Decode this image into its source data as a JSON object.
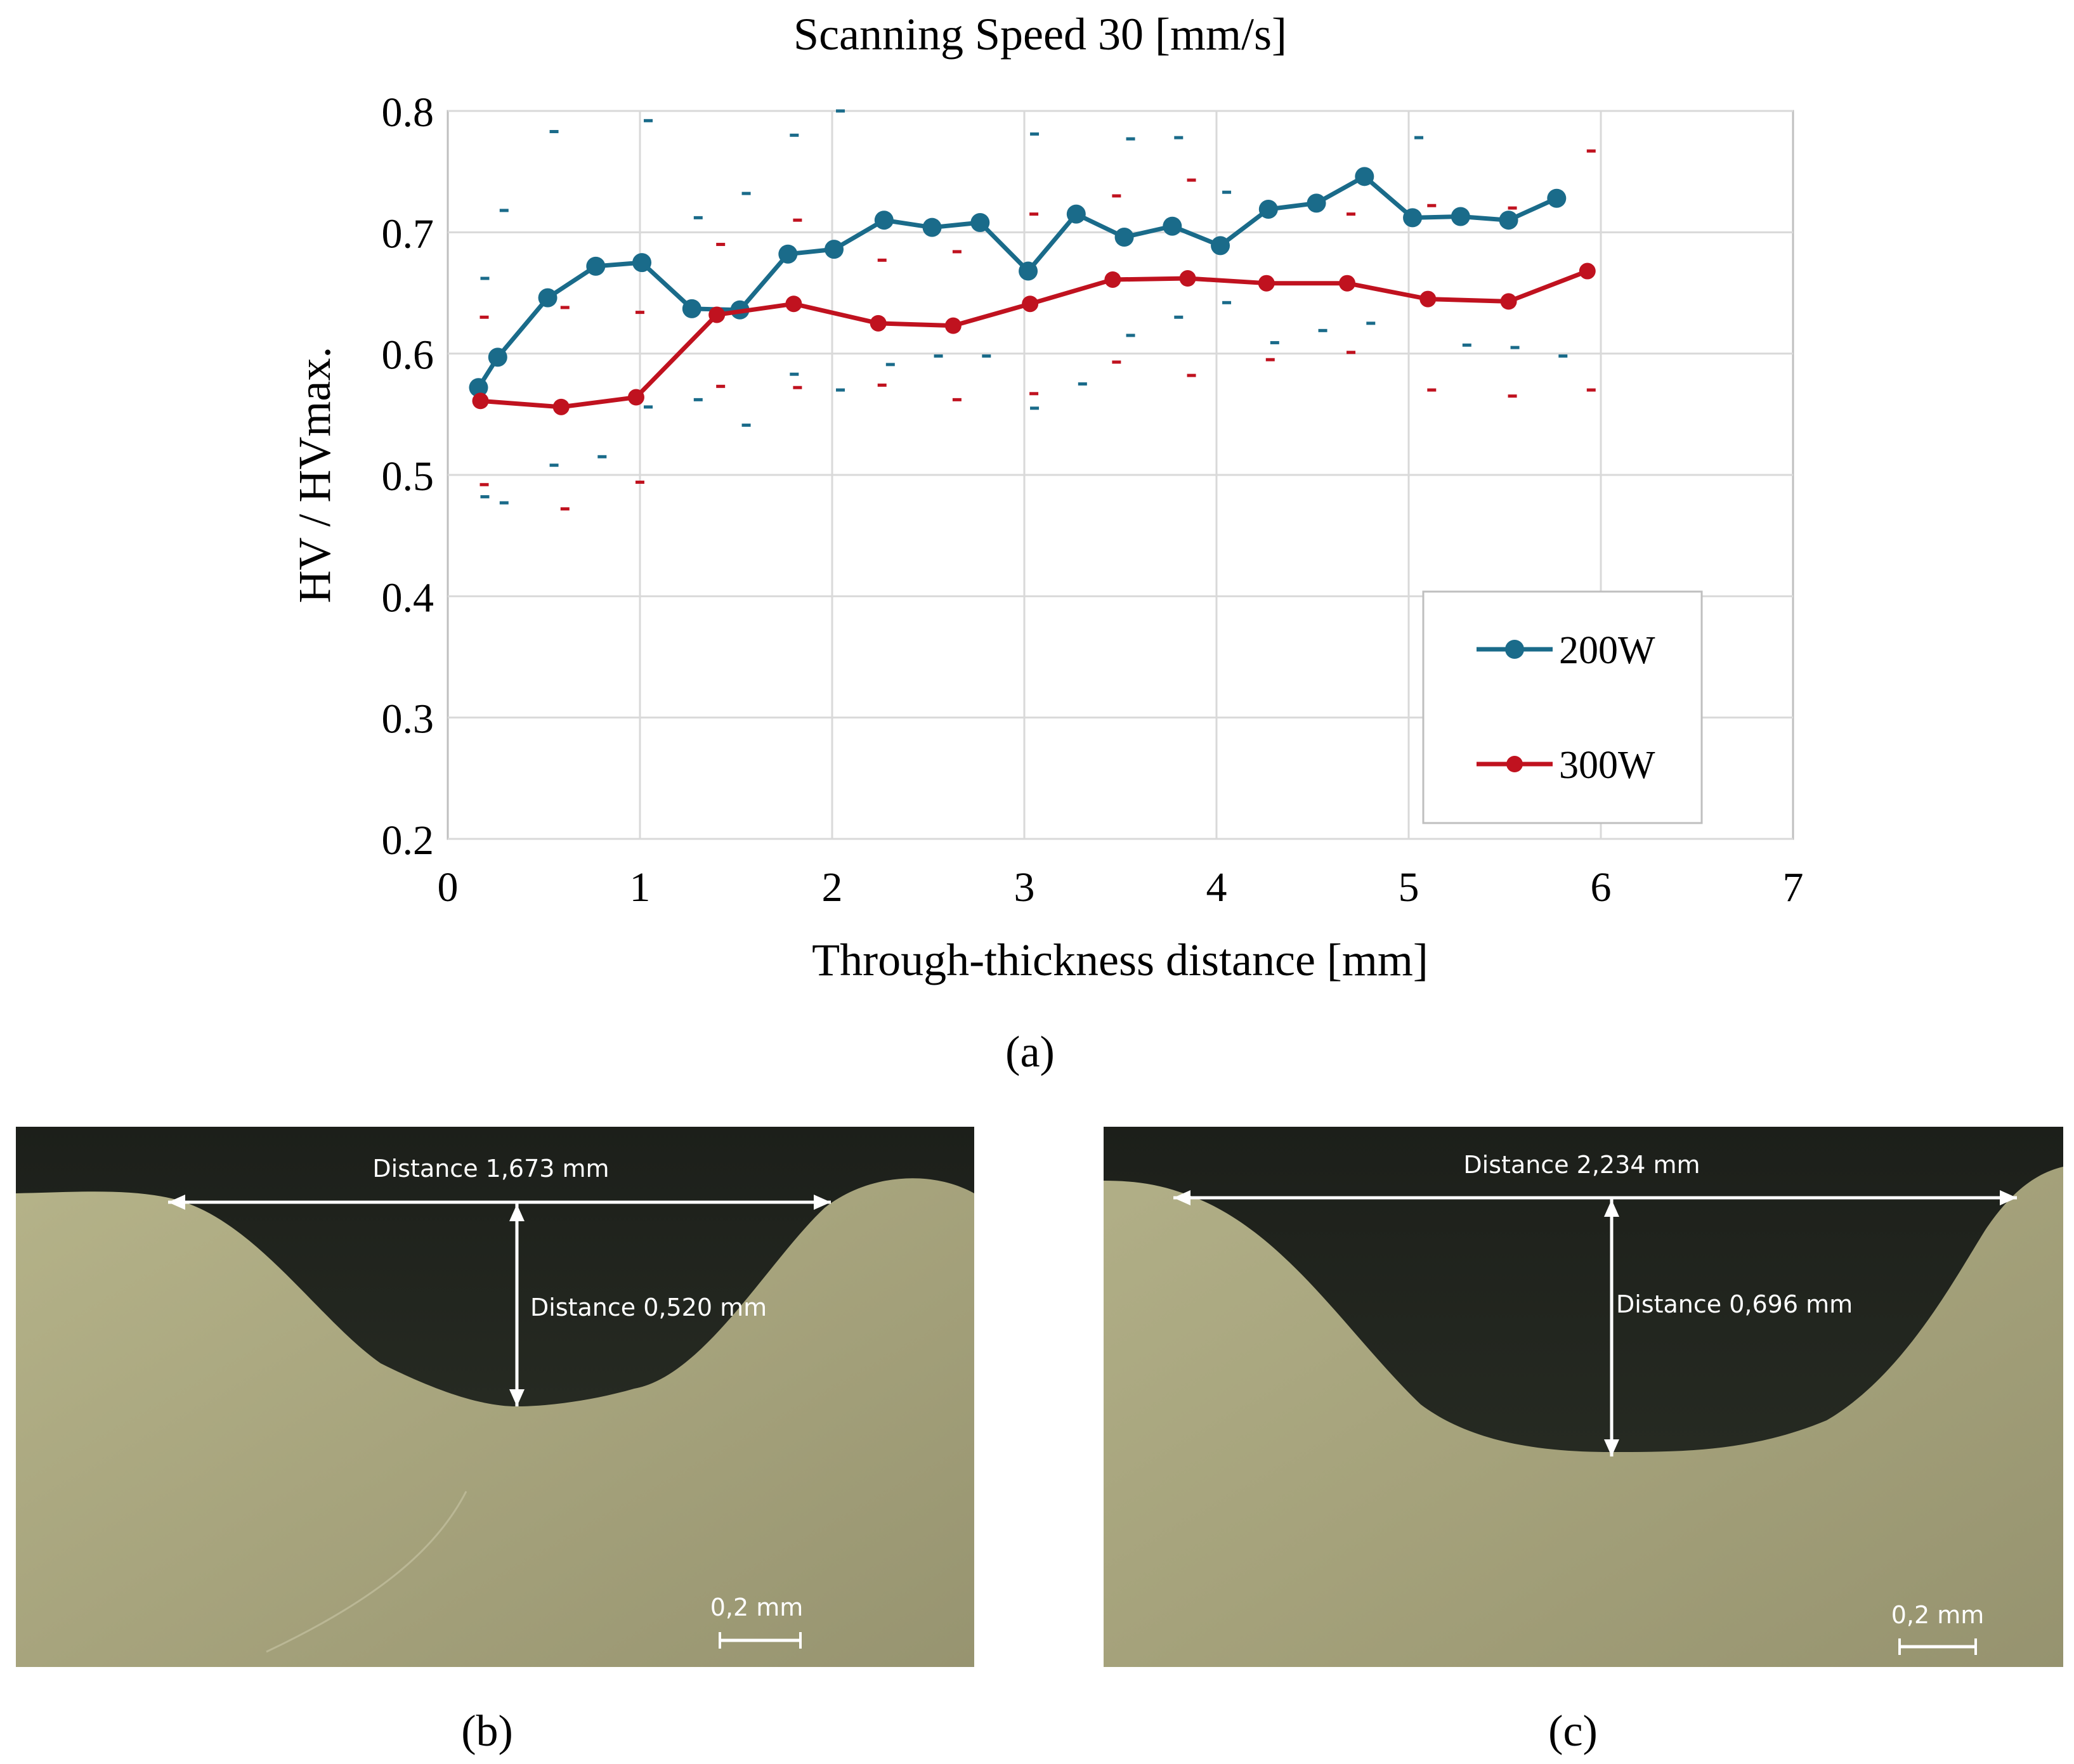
{
  "chart_data": {
    "type": "line",
    "title": "Scanning  Speed 30 [mm/s]",
    "xlabel": "Through-thickness  distance  [mm]",
    "ylabel": "HV / HVmax.",
    "xlim": [
      0,
      7
    ],
    "ylim": [
      0.2,
      0.8
    ],
    "x_ticks": [
      "0",
      "1",
      "2",
      "3",
      "4",
      "5",
      "6",
      "7"
    ],
    "y_ticks": [
      "0.2",
      "0.3",
      "0.4",
      "0.5",
      "0.6",
      "0.7",
      "0.8"
    ],
    "grid": true,
    "legend_position": "bottom-right",
    "colors": {
      "200W": "#1a6b8a",
      "300W": "#c0121f"
    },
    "series": [
      {
        "name": "200W",
        "x": [
          0.16,
          0.26,
          0.52,
          0.77,
          1.01,
          1.27,
          1.52,
          1.77,
          2.01,
          2.27,
          2.52,
          2.77,
          3.02,
          3.27,
          3.52,
          3.77,
          4.02,
          4.27,
          4.52,
          4.77,
          5.02,
          5.27,
          5.52,
          5.77
        ],
        "y": [
          0.572,
          0.597,
          0.646,
          0.672,
          0.675,
          0.637,
          0.636,
          0.682,
          0.686,
          0.71,
          0.704,
          0.708,
          0.668,
          0.715,
          0.696,
          0.705,
          0.689,
          0.719,
          0.724,
          0.746,
          0.712,
          0.713,
          0.71,
          0.728
        ],
        "err_upper": [
          0.662,
          0.718,
          0.783,
          null,
          0.792,
          0.712,
          0.732,
          0.78,
          0.8,
          null,
          null,
          null,
          0.781,
          null,
          0.777,
          0.778,
          0.733,
          null,
          null,
          null,
          0.778,
          null,
          null,
          null
        ],
        "err_lower": [
          0.482,
          0.477,
          0.508,
          0.515,
          0.556,
          0.562,
          0.541,
          0.583,
          0.57,
          0.591,
          0.598,
          0.598,
          0.555,
          0.575,
          0.615,
          0.63,
          0.642,
          0.609,
          0.619,
          0.625,
          null,
          0.607,
          0.605,
          0.598
        ]
      },
      {
        "name": "300W",
        "x": [
          0.17,
          0.59,
          0.98,
          1.4,
          1.8,
          2.24,
          2.63,
          3.03,
          3.46,
          3.85,
          4.26,
          4.68,
          5.1,
          5.52,
          5.93
        ],
        "y": [
          0.561,
          0.556,
          0.564,
          0.632,
          0.641,
          0.625,
          0.623,
          0.641,
          0.661,
          0.662,
          0.658,
          0.658,
          0.645,
          0.643,
          0.668
        ],
        "err_upper": [
          0.63,
          0.638,
          0.634,
          0.69,
          0.71,
          0.677,
          0.684,
          0.715,
          0.73,
          0.743,
          0.722,
          0.715,
          0.722,
          0.72,
          0.767
        ],
        "err_lower": [
          0.492,
          0.472,
          0.494,
          0.573,
          0.572,
          0.574,
          0.562,
          0.567,
          0.593,
          0.582,
          0.595,
          0.601,
          0.57,
          0.565,
          0.57
        ]
      }
    ]
  },
  "captions": {
    "a": "(a)",
    "b": "(b)",
    "c": "(c)"
  },
  "micrographs": [
    {
      "id": "b",
      "width_label": "Distance 1,673 mm",
      "depth_label": "Distance 0,520 mm",
      "scale_label": "0,2 mm"
    },
    {
      "id": "c",
      "width_label": "Distance 2,234 mm",
      "depth_label": "Distance 0,696 mm",
      "scale_label": "0,2 mm"
    }
  ]
}
